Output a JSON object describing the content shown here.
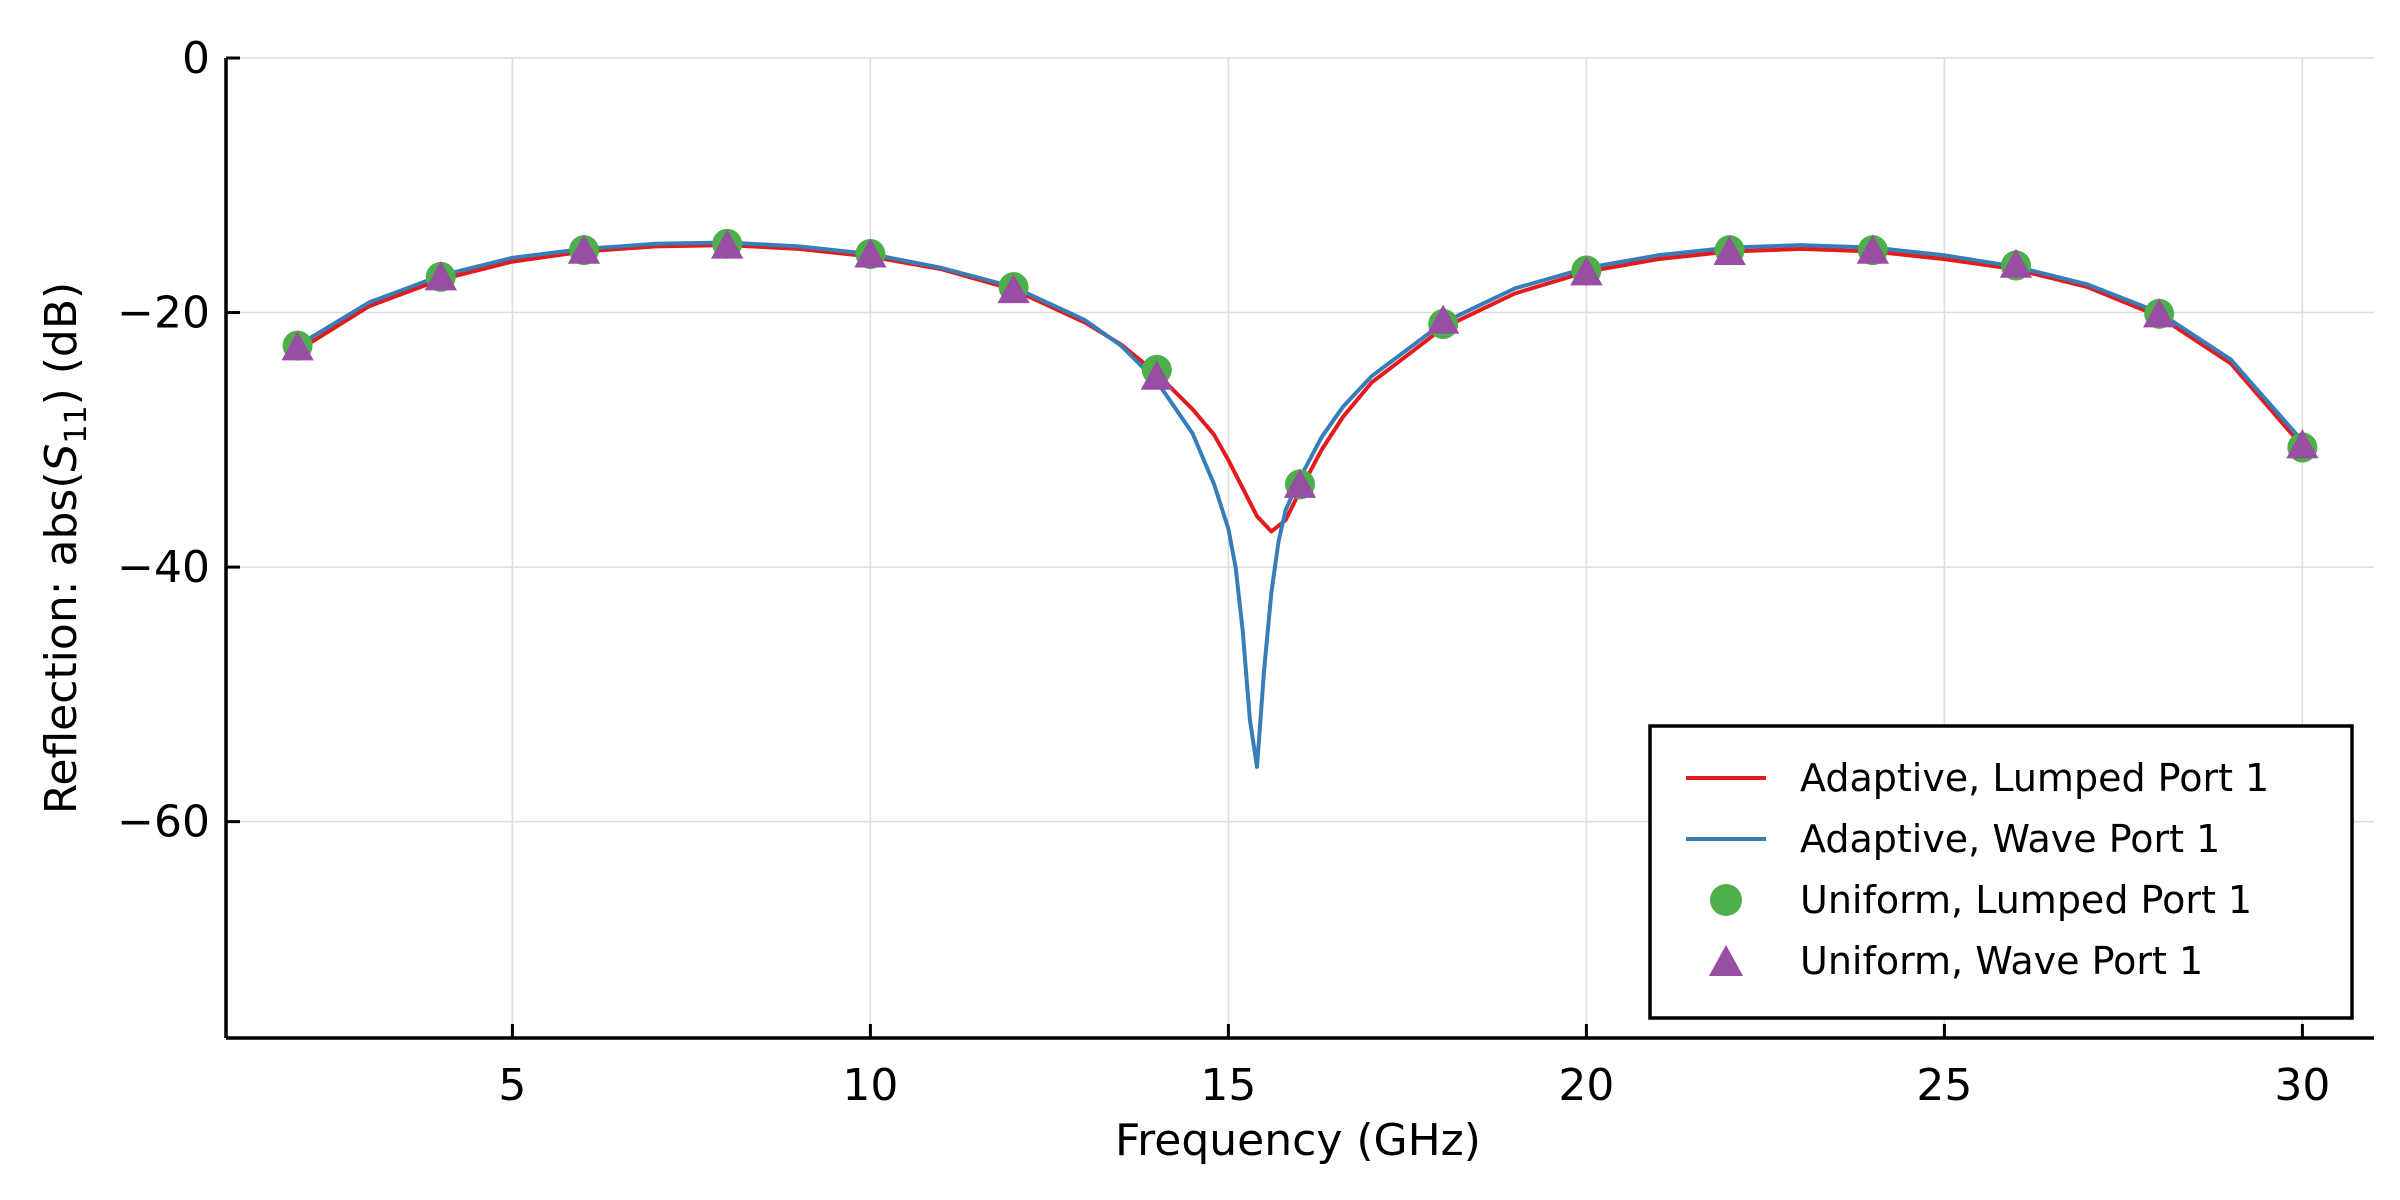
{
  "chart_data": {
    "type": "line",
    "title": "",
    "xlabel": "Frequency  (GHz)",
    "ylabel_prefix": "Reflection: abs(",
    "ylabel_var": "S",
    "ylabel_sub": "11",
    "ylabel_suffix": ")  (dB)",
    "xlim": [
      1,
      31
    ],
    "ylim": [
      -77,
      0
    ],
    "xticks": [
      5,
      10,
      15,
      20,
      25,
      30
    ],
    "yticks": [
      0,
      -20,
      -40,
      -60
    ],
    "xtick_labels": [
      "5",
      "10",
      "15",
      "20",
      "25",
      "30"
    ],
    "ytick_labels": [
      "0",
      "−20",
      "−40",
      "−60"
    ],
    "grid": true,
    "legend_position": "lower-right",
    "series": [
      {
        "name": "Adaptive, Lumped Port 1",
        "kind": "line",
        "color": "#e41a1c",
        "x": [
          2,
          3,
          4,
          5,
          6,
          7,
          8,
          9,
          10,
          11,
          12,
          13,
          13.5,
          14,
          14.5,
          14.8,
          15.0,
          15.2,
          15.4,
          15.6,
          15.8,
          16.0,
          16.3,
          16.6,
          17,
          18,
          19,
          20,
          21,
          22,
          23,
          24,
          25,
          26,
          27,
          28,
          29,
          30
        ],
        "y": [
          -23.0,
          -19.5,
          -17.4,
          -16.0,
          -15.2,
          -14.8,
          -14.7,
          -15.0,
          -15.6,
          -16.6,
          -18.2,
          -20.8,
          -22.5,
          -24.8,
          -27.6,
          -29.6,
          -31.6,
          -33.8,
          -36.0,
          -37.2,
          -36.3,
          -34.0,
          -30.8,
          -28.2,
          -25.5,
          -21.2,
          -18.5,
          -16.8,
          -15.8,
          -15.2,
          -15.0,
          -15.2,
          -15.8,
          -16.6,
          -18.0,
          -20.3,
          -24.0,
          -30.5
        ]
      },
      {
        "name": "Adaptive, Wave Port 1",
        "kind": "line",
        "color": "#377eb8",
        "x": [
          2,
          3,
          4,
          5,
          6,
          7,
          8,
          9,
          10,
          11,
          12,
          13,
          13.5,
          14,
          14.5,
          14.8,
          15.0,
          15.1,
          15.2,
          15.3,
          15.4,
          15.5,
          15.6,
          15.7,
          15.8,
          16.0,
          16.3,
          16.6,
          17,
          18,
          19,
          20,
          21,
          22,
          23,
          24,
          25,
          26,
          27,
          28,
          29,
          30
        ],
        "y": [
          -22.6,
          -19.2,
          -17.1,
          -15.7,
          -15.0,
          -14.6,
          -14.5,
          -14.8,
          -15.4,
          -16.5,
          -18.0,
          -20.6,
          -22.6,
          -25.4,
          -29.5,
          -33.5,
          -37.0,
          -40.0,
          -45.0,
          -52.0,
          -55.7,
          -48.0,
          -42.0,
          -38.0,
          -35.5,
          -33.0,
          -29.8,
          -27.4,
          -25.0,
          -20.8,
          -18.1,
          -16.5,
          -15.5,
          -14.9,
          -14.7,
          -14.9,
          -15.5,
          -16.4,
          -17.8,
          -20.0,
          -23.7,
          -30.1
        ]
      },
      {
        "name": "Uniform, Lumped Port 1",
        "kind": "marker-circle",
        "color": "#4daf4a",
        "x": [
          2,
          4,
          6,
          8,
          10,
          12,
          14,
          16,
          18,
          20,
          22,
          24,
          26,
          28,
          30
        ],
        "y": [
          -22.6,
          -17.2,
          -15.1,
          -14.6,
          -15.4,
          -18.0,
          -24.5,
          -33.5,
          -20.9,
          -16.7,
          -15.1,
          -15.1,
          -16.3,
          -20.1,
          -30.6
        ]
      },
      {
        "name": "Uniform, Wave Port 1",
        "kind": "marker-triangle",
        "color": "#984ea3",
        "x": [
          2,
          4,
          6,
          8,
          10,
          12,
          14,
          16,
          18,
          20,
          22,
          24,
          26,
          28,
          30
        ],
        "y": [
          -22.8,
          -17.3,
          -15.2,
          -14.8,
          -15.5,
          -18.3,
          -25.1,
          -33.6,
          -20.7,
          -16.9,
          -15.3,
          -15.2,
          -16.3,
          -20.2,
          -30.5
        ]
      }
    ]
  }
}
